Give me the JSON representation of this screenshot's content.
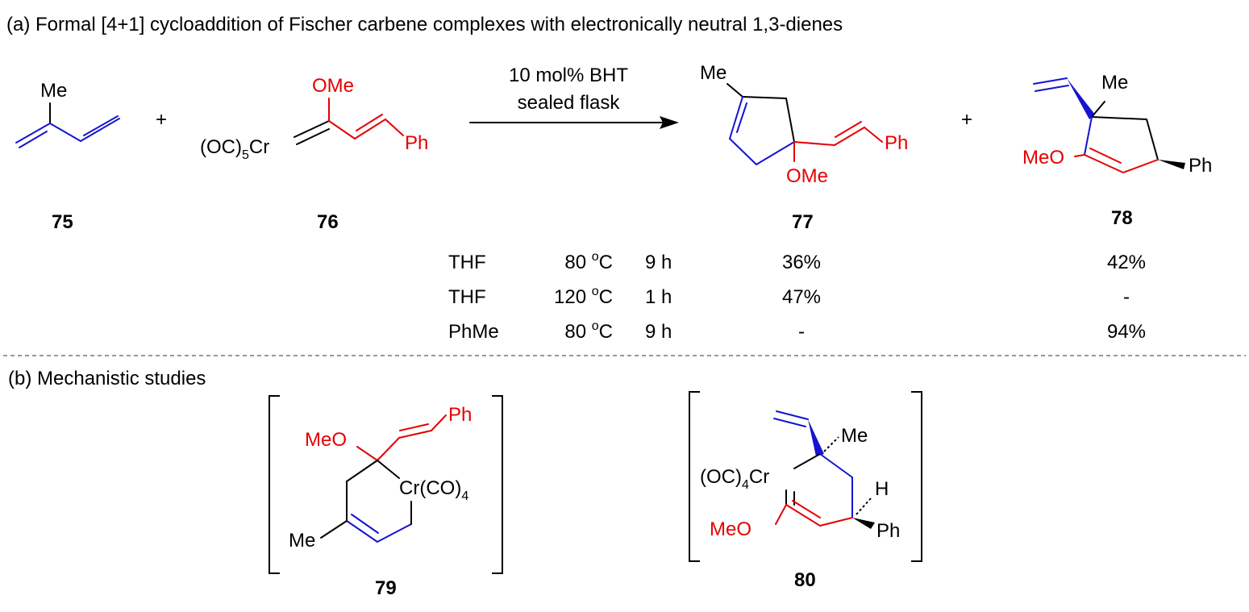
{
  "part_a": {
    "title": "(a)  Formal [4+1] cycloaddition of  Fischer carbene complexes with electronically neutral 1,3-dienes",
    "plus": "+",
    "arrow": {
      "above": "10 mol% BHT",
      "below": "sealed flask"
    },
    "compounds": {
      "c75": {
        "id": "75",
        "me": "Me"
      },
      "c76": {
        "id": "76",
        "ome": "OMe",
        "metal_pre": "(OC)",
        "metal_sub": "5",
        "metal_post": "Cr",
        "ph": "Ph"
      },
      "c77": {
        "id": "77",
        "me": "Me",
        "ph": "Ph",
        "ome": "OMe"
      },
      "c78": {
        "id": "78",
        "me": "Me",
        "meo": "MeO",
        "ph": "Ph"
      }
    },
    "table": {
      "rows": [
        {
          "solvent": "THF",
          "temp": "80",
          "deg": "o",
          "unit": "C",
          "time": "9 h",
          "y77": "36%",
          "y78": "42%"
        },
        {
          "solvent": "THF",
          "temp": "120",
          "deg": "o",
          "unit": "C",
          "time": "1 h",
          "y77": "47%",
          "y78": "-"
        },
        {
          "solvent": "PhMe",
          "temp": "80",
          "deg": "o",
          "unit": "C",
          "time": "9 h",
          "y77": "-",
          "y78": "94%"
        }
      ]
    }
  },
  "part_b": {
    "title": "(b) Mechanistic studies",
    "compounds": {
      "c79": {
        "id": "79",
        "ph": "Ph",
        "meo": "MeO",
        "cr": "Cr(CO)",
        "cr_sub": "4",
        "me": "Me"
      },
      "c80": {
        "id": "80",
        "me": "Me",
        "cr_pre": "(OC)",
        "cr_sub": "4",
        "cr_post": "Cr",
        "h": "H",
        "meo": "MeO",
        "ph": "Ph"
      }
    }
  },
  "colors": {
    "diene_bonds": "#1414d2",
    "carbene_fragment": "#e60000",
    "default": "#000000"
  }
}
